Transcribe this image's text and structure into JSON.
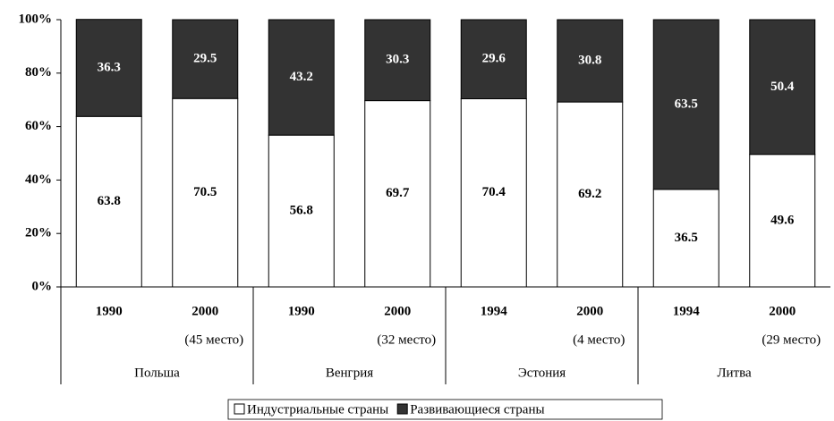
{
  "chart_data": {
    "type": "stacked_bar",
    "categories": [
      "1990",
      "2000",
      "1990",
      "2000",
      "1994",
      "2000",
      "1994",
      "2000"
    ],
    "notes": [
      null,
      "(45 место)",
      null,
      "(32 место)",
      null,
      "(4 место)",
      null,
      "(29 место)"
    ],
    "groups": [
      "Польша",
      "Венгрия",
      "Эстония",
      "Литва"
    ],
    "series": [
      {
        "name": "Индустриальные страны",
        "color": "#ffffff",
        "values": [
          63.8,
          70.5,
          56.8,
          69.7,
          70.4,
          69.2,
          36.5,
          49.6
        ]
      },
      {
        "name": "Развивающиеся страны",
        "color": "#333333",
        "values": [
          36.3,
          29.5,
          43.2,
          30.3,
          29.6,
          30.8,
          63.5,
          50.4
        ]
      }
    ],
    "ylim": [
      0,
      100
    ],
    "yticks": [
      {
        "value": 0,
        "label": "0%"
      },
      {
        "value": 20,
        "label": "20%"
      },
      {
        "value": 40,
        "label": "40%"
      },
      {
        "value": 60,
        "label": "60%"
      },
      {
        "value": 80,
        "label": "80%"
      },
      {
        "value": 100,
        "label": "100%"
      }
    ]
  }
}
